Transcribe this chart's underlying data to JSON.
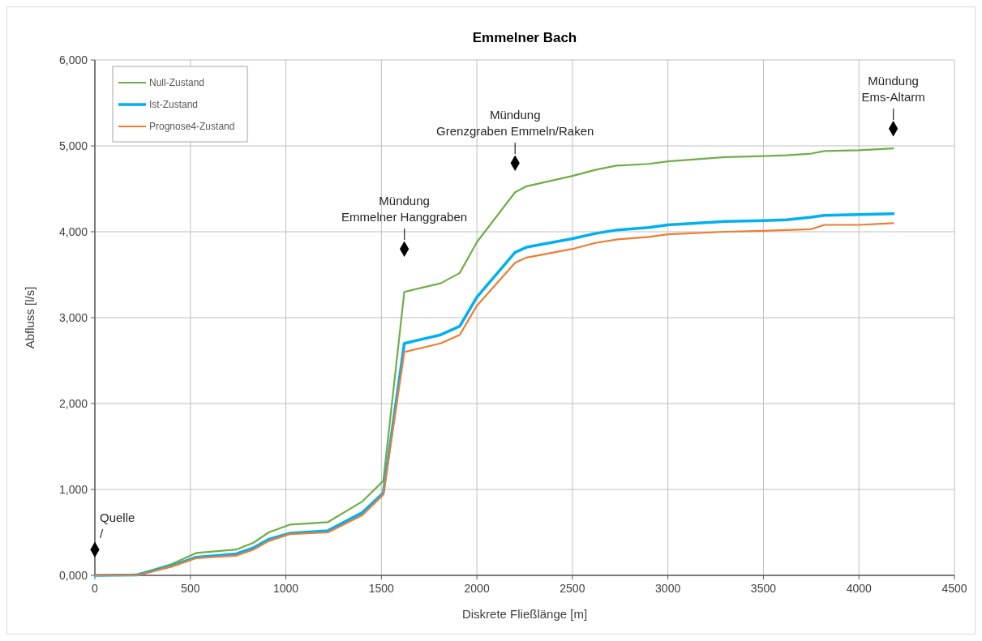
{
  "chart_data": {
    "type": "line",
    "title": "Emmelner Bach",
    "xlabel": "Diskrete Fließlänge [m]",
    "ylabel": "Abfluss [l/s]",
    "x": [
      0,
      220,
      400,
      530,
      740,
      830,
      910,
      1020,
      1220,
      1400,
      1510,
      1620,
      1810,
      1910,
      2000,
      2200,
      2260,
      2500,
      2620,
      2730,
      2900,
      3000,
      3300,
      3500,
      3620,
      3750,
      3820,
      4000,
      4180
    ],
    "series": [
      {
        "name": "Null-Zustand",
        "color": "#70ad47",
        "values": [
          0,
          10,
          130,
          260,
          300,
          380,
          500,
          590,
          620,
          860,
          1100,
          3300,
          3400,
          3520,
          3880,
          4460,
          4530,
          4650,
          4720,
          4770,
          4790,
          4820,
          4870,
          4880,
          4890,
          4910,
          4940,
          4950,
          4970
        ]
      },
      {
        "name": "Ist-Zustand",
        "color": "#00b0f0",
        "values": [
          0,
          5,
          110,
          210,
          250,
          320,
          420,
          490,
          520,
          730,
          960,
          2700,
          2800,
          2900,
          3240,
          3760,
          3820,
          3920,
          3980,
          4020,
          4050,
          4080,
          4120,
          4130,
          4140,
          4170,
          4190,
          4200,
          4210
        ]
      },
      {
        "name": "Prognose4-Zustand",
        "color": "#ed7d31",
        "values": [
          0,
          0,
          100,
          200,
          230,
          300,
          400,
          480,
          500,
          700,
          940,
          2600,
          2700,
          2800,
          3140,
          3640,
          3700,
          3800,
          3870,
          3910,
          3940,
          3970,
          4000,
          4010,
          4020,
          4030,
          4080,
          4080,
          4100
        ]
      },
      {
        "type": "scatter",
        "color": "#000000",
        "marker": "diamond",
        "x": [
          0,
          1620,
          2200,
          4180
        ],
        "values": [
          300,
          3800,
          4800,
          5200
        ]
      }
    ],
    "annotations": [
      {
        "text": "Quelle\n/",
        "x": 0,
        "y": 300
      },
      {
        "text": "Mündung\nEmmelner Hanggraben\n|",
        "x": 1620,
        "y": 3800
      },
      {
        "text": "Mündung\nGrenzgraben Emmeln/Raken\n|",
        "x": 2200,
        "y": 4800
      },
      {
        "text": "Mündung\nEms-Altarm\n|",
        "x": 4180,
        "y": 5200
      }
    ],
    "xlim": [
      0,
      4500
    ],
    "xticks": [
      0,
      500,
      1000,
      1500,
      2000,
      2500,
      3000,
      3500,
      4000,
      4500
    ],
    "ylim": [
      0,
      6000
    ],
    "yticks": [
      {
        "value": 0,
        "label": "0,000"
      },
      {
        "value": 1000,
        "label": "1,000"
      },
      {
        "value": 2000,
        "label": "2,000"
      },
      {
        "value": 3000,
        "label": "3,000"
      },
      {
        "value": 4000,
        "label": "4,000"
      },
      {
        "value": 5000,
        "label": "5,000"
      },
      {
        "value": 6000,
        "label": "6,000"
      }
    ],
    "grid": true,
    "legend": "top left"
  }
}
